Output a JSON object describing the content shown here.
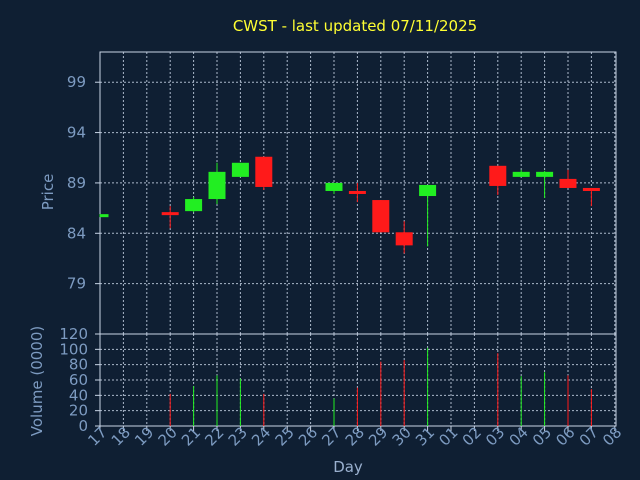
{
  "chart_data": [
    {
      "type": "candlestick",
      "title": "CWST - last updated 07/11/2025",
      "ylabel": "Price",
      "ylim": [
        74,
        102
      ],
      "yticks": [
        79,
        84,
        89,
        94,
        99
      ],
      "grid": true,
      "categories": [
        "17",
        "18",
        "19",
        "20",
        "21",
        "22",
        "23",
        "24",
        "25",
        "26",
        "27",
        "28",
        "29",
        "30",
        "31",
        "01",
        "02",
        "03",
        "04",
        "05",
        "06",
        "07",
        "08"
      ],
      "candles": [
        {
          "day": "17",
          "open": 85.6,
          "close": 85.9,
          "high": 85.9,
          "low": 85.6
        },
        {
          "day": "20",
          "open": 86.1,
          "close": 85.9,
          "high": 86.7,
          "low": 84.5
        },
        {
          "day": "21",
          "open": 86.2,
          "close": 87.4,
          "high": 87.6,
          "low": 86.1
        },
        {
          "day": "22",
          "open": 87.4,
          "close": 90.1,
          "high": 91.0,
          "low": 86.9
        },
        {
          "day": "23",
          "open": 89.6,
          "close": 91.0,
          "high": 91.0,
          "low": 89.6
        },
        {
          "day": "24",
          "open": 91.6,
          "close": 88.6,
          "high": 91.6,
          "low": 88.3
        },
        {
          "day": "27",
          "open": 88.2,
          "close": 89.0,
          "high": 89.0,
          "low": 87.9
        },
        {
          "day": "28",
          "open": 88.2,
          "close": 87.9,
          "high": 89.0,
          "low": 87.1
        },
        {
          "day": "29",
          "open": 87.3,
          "close": 84.1,
          "high": 87.3,
          "low": 84.1
        },
        {
          "day": "30",
          "open": 84.1,
          "close": 82.8,
          "high": 85.2,
          "low": 82.0
        },
        {
          "day": "31",
          "open": 87.7,
          "close": 88.8,
          "high": 88.8,
          "low": 82.7
        },
        {
          "day": "03",
          "open": 90.7,
          "close": 88.7,
          "high": 90.7,
          "low": 87.8
        },
        {
          "day": "04",
          "open": 89.6,
          "close": 90.1,
          "high": 90.3,
          "low": 89.6
        },
        {
          "day": "05",
          "open": 89.6,
          "close": 90.1,
          "high": 90.2,
          "low": 87.5
        },
        {
          "day": "06",
          "open": 89.4,
          "close": 88.5,
          "high": 90.3,
          "low": 88.5
        },
        {
          "day": "07",
          "open": 88.5,
          "close": 88.2,
          "high": 88.5,
          "low": 86.7
        }
      ]
    },
    {
      "type": "bar",
      "ylabel": "Volume (0000)",
      "xlabel": "Day",
      "ylim": [
        0,
        120
      ],
      "yticks": [
        0,
        20,
        40,
        60,
        80,
        100,
        120
      ],
      "grid": true,
      "categories": [
        "17",
        "18",
        "19",
        "20",
        "21",
        "22",
        "23",
        "24",
        "25",
        "26",
        "27",
        "28",
        "29",
        "30",
        "31",
        "01",
        "02",
        "03",
        "04",
        "05",
        "06",
        "07",
        "08"
      ],
      "bars": [
        {
          "day": "20",
          "value": 42,
          "color": "#ff1a1a"
        },
        {
          "day": "21",
          "value": 52,
          "color": "#22ee22"
        },
        {
          "day": "22",
          "value": 66,
          "color": "#22ee22"
        },
        {
          "day": "23",
          "value": 62,
          "color": "#22ee22"
        },
        {
          "day": "24",
          "value": 42,
          "color": "#ff1a1a"
        },
        {
          "day": "27",
          "value": 36,
          "color": "#22ee22"
        },
        {
          "day": "28",
          "value": 50,
          "color": "#ff1a1a"
        },
        {
          "day": "29",
          "value": 84,
          "color": "#ff1a1a"
        },
        {
          "day": "30",
          "value": 86,
          "color": "#ff1a1a"
        },
        {
          "day": "31",
          "value": 102,
          "color": "#22ee22"
        },
        {
          "day": "03",
          "value": 95,
          "color": "#ff1a1a"
        },
        {
          "day": "04",
          "value": 65,
          "color": "#22ee22"
        },
        {
          "day": "05",
          "value": 70,
          "color": "#22ee22"
        },
        {
          "day": "06",
          "value": 66,
          "color": "#ff1a1a"
        },
        {
          "day": "07",
          "value": 48,
          "color": "#ff1a1a"
        }
      ]
    }
  ],
  "colors": {
    "background": "#0f1f33",
    "axis": "#7d9bc1",
    "frame": "#c8d4e6",
    "grid": "#c8d4e6",
    "title": "#ffff33",
    "up": "#22ee22",
    "down": "#ff1a1a"
  }
}
